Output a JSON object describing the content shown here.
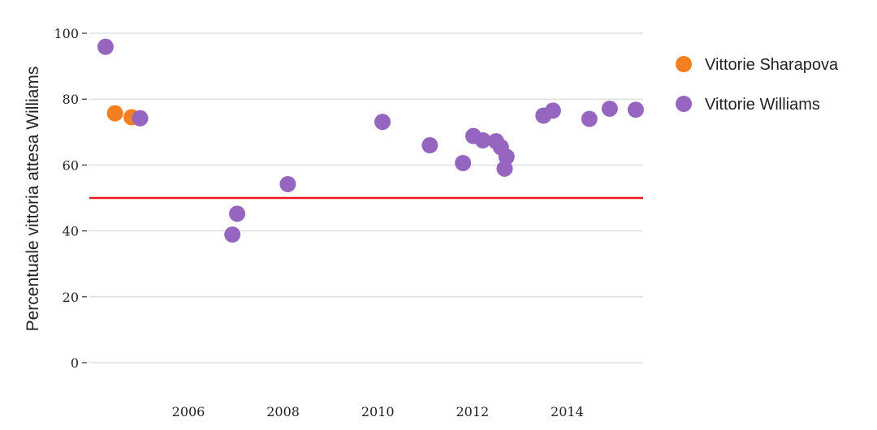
{
  "chart_data": {
    "type": "scatter",
    "ylabel": "Percentuale vittoria attesa Williams",
    "xlabel": "",
    "xlim": [
      2004.1,
      2015.9
    ],
    "ylim": [
      -5,
      103
    ],
    "x_ticks": [
      2006,
      2008,
      2010,
      2012,
      2014
    ],
    "y_ticks": [
      0,
      20,
      40,
      60,
      80,
      100
    ],
    "grid": true,
    "legend_position": "top-right",
    "reference_line": {
      "y": 50,
      "color": "#e8191f"
    },
    "series": [
      {
        "name": "Vittorie Sharapova",
        "color": "#f47f20",
        "points": [
          {
            "x": 2004.45,
            "y": 75.7
          },
          {
            "x": 2004.8,
            "y": 74.5
          }
        ]
      },
      {
        "name": "Vittorie Williams",
        "color": "#9565c0",
        "points": [
          {
            "x": 2004.25,
            "y": 95.9
          },
          {
            "x": 2004.98,
            "y": 74.2
          },
          {
            "x": 2006.93,
            "y": 38.9
          },
          {
            "x": 2007.03,
            "y": 45.2
          },
          {
            "x": 2008.1,
            "y": 54.2
          },
          {
            "x": 2010.1,
            "y": 73.1
          },
          {
            "x": 2011.1,
            "y": 66.0
          },
          {
            "x": 2011.8,
            "y": 60.6
          },
          {
            "x": 2012.02,
            "y": 68.8
          },
          {
            "x": 2012.22,
            "y": 67.5
          },
          {
            "x": 2012.5,
            "y": 67.2
          },
          {
            "x": 2012.6,
            "y": 65.4
          },
          {
            "x": 2012.72,
            "y": 62.5
          },
          {
            "x": 2012.68,
            "y": 58.9
          },
          {
            "x": 2013.5,
            "y": 75.0
          },
          {
            "x": 2013.7,
            "y": 76.5
          },
          {
            "x": 2014.47,
            "y": 74.0
          },
          {
            "x": 2014.9,
            "y": 77.1
          },
          {
            "x": 2015.45,
            "y": 76.8
          }
        ]
      }
    ]
  }
}
